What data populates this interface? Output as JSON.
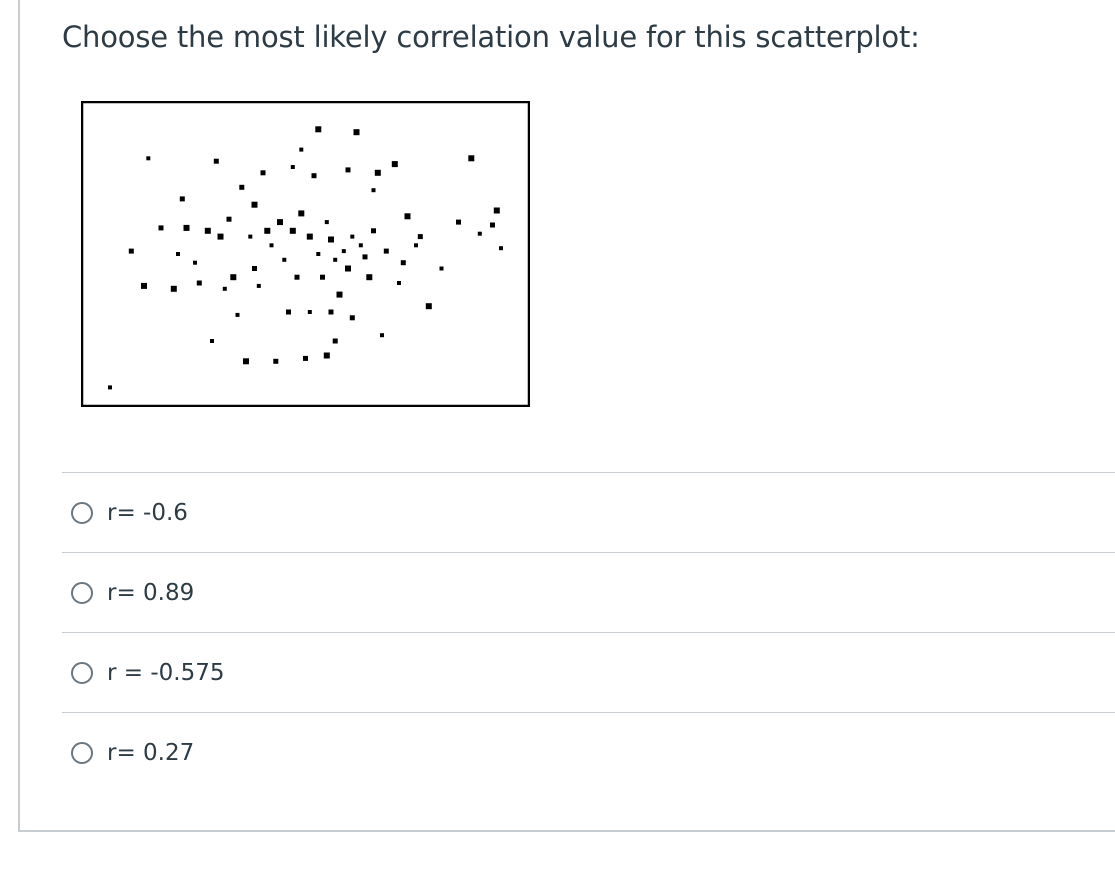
{
  "question": {
    "prompt": "Choose the most likely correlation value for this scatterplot:"
  },
  "chart_data": {
    "type": "scatter",
    "title": "",
    "xlabel": "",
    "ylabel": "",
    "xlim": [
      0,
      100
    ],
    "ylim": [
      0,
      100
    ],
    "grid": false,
    "points": [
      [
        4,
        4
      ],
      [
        9,
        51
      ],
      [
        12,
        39
      ],
      [
        13,
        83
      ],
      [
        16,
        59
      ],
      [
        19,
        38
      ],
      [
        20,
        50
      ],
      [
        21,
        69
      ],
      [
        22,
        59
      ],
      [
        24,
        47
      ],
      [
        25,
        40
      ],
      [
        27,
        58
      ],
      [
        28,
        20
      ],
      [
        29,
        82
      ],
      [
        30,
        56
      ],
      [
        31,
        38
      ],
      [
        32,
        62
      ],
      [
        33,
        42
      ],
      [
        34,
        29
      ],
      [
        35,
        73
      ],
      [
        36,
        13
      ],
      [
        37,
        56
      ],
      [
        38,
        45
      ],
      [
        38,
        67
      ],
      [
        39,
        39
      ],
      [
        40,
        78
      ],
      [
        41,
        58
      ],
      [
        42,
        53
      ],
      [
        43,
        13
      ],
      [
        44,
        61
      ],
      [
        45,
        48
      ],
      [
        46,
        30
      ],
      [
        47,
        58
      ],
      [
        47,
        80
      ],
      [
        48,
        42
      ],
      [
        49,
        64
      ],
      [
        49,
        86
      ],
      [
        50,
        14
      ],
      [
        51,
        56
      ],
      [
        51,
        30
      ],
      [
        52,
        77
      ],
      [
        53,
        93
      ],
      [
        53,
        50
      ],
      [
        54,
        42
      ],
      [
        55,
        15
      ],
      [
        55,
        61
      ],
      [
        56,
        30
      ],
      [
        56,
        55
      ],
      [
        57,
        48
      ],
      [
        57,
        20
      ],
      [
        58,
        36
      ],
      [
        59,
        51
      ],
      [
        60,
        79
      ],
      [
        60,
        45
      ],
      [
        61,
        56
      ],
      [
        61,
        28
      ],
      [
        62,
        92
      ],
      [
        63,
        53
      ],
      [
        64,
        49
      ],
      [
        65,
        42
      ],
      [
        66,
        72
      ],
      [
        66,
        58
      ],
      [
        67,
        78
      ],
      [
        68,
        22
      ],
      [
        69,
        51
      ],
      [
        71,
        81
      ],
      [
        72,
        40
      ],
      [
        73,
        47
      ],
      [
        74,
        63
      ],
      [
        76,
        53
      ],
      [
        77,
        56
      ],
      [
        79,
        32
      ],
      [
        82,
        45
      ],
      [
        86,
        61
      ],
      [
        89,
        83
      ],
      [
        91,
        57
      ],
      [
        94,
        60
      ],
      [
        95,
        65
      ],
      [
        96,
        52
      ]
    ]
  },
  "answers": [
    {
      "label": "r= -0.6"
    },
    {
      "label": "r= 0.89"
    },
    {
      "label": "r = -0.575"
    },
    {
      "label": "r= 0.27"
    }
  ]
}
